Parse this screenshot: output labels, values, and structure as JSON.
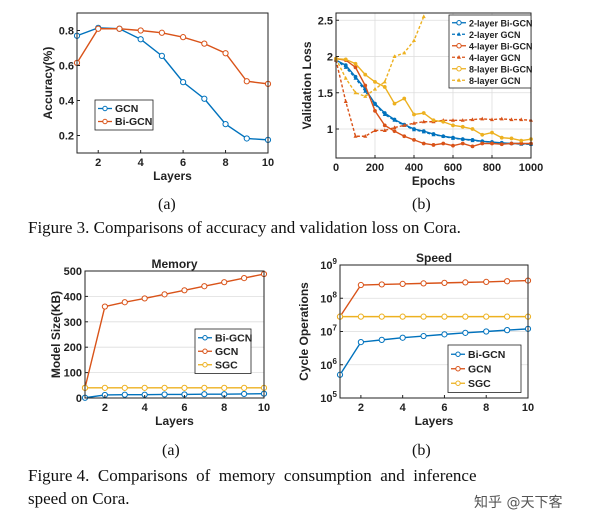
{
  "colors": {
    "blue": "#0072BD",
    "orange": "#D95319",
    "yellow": "#EDB120"
  },
  "figure3": {
    "caption": "Figure 3. Comparisons of accuracy and validation loss on Cora.",
    "sub_a": "(a)",
    "sub_b": "(b)"
  },
  "figure4": {
    "caption_line1": "Figure 4.  Comparisons  of  memory  consumption  and  inference",
    "caption_line2": "speed on Cora.",
    "sub_a": "(a)",
    "sub_b": "(b)"
  },
  "watermark": "知乎 @天下客",
  "chart_data": [
    {
      "id": "f3a",
      "type": "line",
      "title": "",
      "xlabel": "Layers",
      "ylabel": "Accuracy(%)",
      "xlim": [
        1,
        10
      ],
      "ylim": [
        0.1,
        0.9
      ],
      "xticks": [
        2,
        4,
        6,
        8,
        10
      ],
      "yticks": [
        0.2,
        0.4,
        0.6,
        0.8
      ],
      "grid": false,
      "legend": "bottom-left",
      "x": [
        1,
        2,
        3,
        4,
        5,
        6,
        7,
        8,
        9,
        10
      ],
      "series": [
        {
          "name": "GCN",
          "color": "#0072BD",
          "marker": "circle",
          "values": [
            0.77,
            0.815,
            0.81,
            0.75,
            0.655,
            0.505,
            0.41,
            0.265,
            0.183,
            0.175
          ]
        },
        {
          "name": "Bi-GCN",
          "color": "#D95319",
          "marker": "circle",
          "values": [
            0.615,
            0.81,
            0.81,
            0.8,
            0.787,
            0.762,
            0.725,
            0.67,
            0.51,
            0.495
          ]
        }
      ]
    },
    {
      "id": "f3b",
      "type": "line",
      "title": "",
      "xlabel": "Epochs",
      "ylabel": "Validation Loss",
      "xlim": [
        0,
        1000
      ],
      "ylim": [
        0.6,
        2.6
      ],
      "xticks": [
        0,
        200,
        400,
        600,
        800,
        1000
      ],
      "yticks": [
        1,
        1.5,
        2,
        2.5
      ],
      "grid": true,
      "legend": "top-right",
      "x": [
        0,
        50,
        100,
        150,
        200,
        250,
        300,
        350,
        400,
        450,
        500,
        550,
        600,
        650,
        700,
        750,
        800,
        850,
        900,
        950,
        1000
      ],
      "series": [
        {
          "name": "2-layer Bi-GCN",
          "color": "#0072BD",
          "marker": "circle",
          "dash": false,
          "values": [
            1.95,
            1.88,
            1.72,
            1.55,
            1.35,
            1.22,
            1.13,
            1.06,
            1.0,
            0.97,
            0.93,
            0.9,
            0.88,
            0.86,
            0.85,
            0.83,
            0.82,
            0.81,
            0.8,
            0.8,
            0.79
          ]
        },
        {
          "name": "2-layer GCN",
          "color": "#0072BD",
          "marker": "triangle",
          "dash": true,
          "values": [
            1.95,
            1.85,
            1.7,
            1.52,
            1.34,
            1.2,
            1.12,
            1.05,
            0.99,
            0.96,
            0.92,
            0.9,
            0.87,
            0.86,
            0.84,
            0.83,
            0.82,
            0.8,
            0.8,
            0.79,
            0.79
          ]
        },
        {
          "name": "4-layer Bi-GCN",
          "color": "#D95319",
          "marker": "circle",
          "dash": false,
          "values": [
            1.97,
            1.95,
            1.85,
            1.6,
            1.25,
            1.05,
            0.97,
            0.9,
            0.85,
            0.8,
            0.78,
            0.8,
            0.77,
            0.8,
            0.76,
            0.8,
            0.8,
            0.79,
            0.8,
            0.8,
            0.8
          ]
        },
        {
          "name": "4-layer GCN",
          "color": "#D95319",
          "marker": "triangle",
          "dash": true,
          "values": [
            1.95,
            1.38,
            0.9,
            0.9,
            0.98,
            0.98,
            1.02,
            1.05,
            1.08,
            1.1,
            1.1,
            1.12,
            1.12,
            1.12,
            1.13,
            1.14,
            1.13,
            1.14,
            1.13,
            1.13,
            1.12
          ]
        },
        {
          "name": "8-layer Bi-GCN",
          "color": "#EDB120",
          "marker": "circle",
          "dash": false,
          "values": [
            1.97,
            1.96,
            1.9,
            1.75,
            1.65,
            1.58,
            1.35,
            1.42,
            1.2,
            1.22,
            1.12,
            1.1,
            1.05,
            1.03,
            1.0,
            0.92,
            0.95,
            0.88,
            0.87,
            0.84,
            0.86
          ]
        },
        {
          "name": "8-layer GCN",
          "color": "#EDB120",
          "marker": "triangle",
          "dash": true,
          "values": [
            1.97,
            1.7,
            1.5,
            1.45,
            1.55,
            1.65,
            2.0,
            2.05,
            2.22,
            2.55,
            null,
            null,
            null,
            null,
            null,
            null,
            null,
            null,
            null,
            null,
            null
          ]
        }
      ]
    },
    {
      "id": "f4a",
      "type": "line",
      "title": "Memory",
      "xlabel": "Layers",
      "ylabel": "Model Size(KB)",
      "xlim": [
        1,
        10
      ],
      "ylim": [
        0,
        500
      ],
      "xticks": [
        2,
        4,
        6,
        8,
        10
      ],
      "yticks": [
        0,
        100,
        200,
        300,
        400,
        500
      ],
      "grid": "horizontal",
      "legend": "right",
      "x": [
        1,
        2,
        3,
        4,
        5,
        6,
        7,
        8,
        9,
        10
      ],
      "series": [
        {
          "name": "Bi-GCN",
          "color": "#0072BD",
          "marker": "circle",
          "values": [
            1,
            12,
            13,
            13,
            14,
            14,
            15,
            15,
            16,
            17
          ]
        },
        {
          "name": "GCN",
          "color": "#D95319",
          "marker": "circle",
          "values": [
            40,
            360,
            377,
            392,
            408,
            424,
            440,
            456,
            472,
            488
          ]
        },
        {
          "name": "SGC",
          "color": "#EDB120",
          "marker": "circle",
          "values": [
            40,
            40,
            40,
            40,
            40,
            40,
            40,
            40,
            40,
            40
          ]
        }
      ]
    },
    {
      "id": "f4b",
      "type": "line",
      "title": "Speed",
      "xlabel": "Layers",
      "ylabel": "Cycle Operations",
      "xlim": [
        1,
        10
      ],
      "ylim": [
        100000,
        1000000000
      ],
      "yscale": "log",
      "xticks": [
        2,
        4,
        6,
        8,
        10
      ],
      "yticks": [
        5,
        6,
        7,
        8,
        9
      ],
      "grid": "horizontal",
      "legend": "bottom-right",
      "x": [
        1,
        2,
        3,
        4,
        5,
        6,
        7,
        8,
        9,
        10
      ],
      "series": [
        {
          "name": "Bi-GCN",
          "color": "#0072BD",
          "marker": "circle",
          "values": [
            500000,
            4800000,
            5600000,
            6500000,
            7300000,
            8200000,
            9100000,
            10000000,
            11000000,
            12000000
          ]
        },
        {
          "name": "GCN",
          "color": "#D95319",
          "marker": "circle",
          "values": [
            28000000,
            250000000,
            260000000,
            270000000,
            280000000,
            290000000,
            300000000,
            310000000,
            325000000,
            340000000
          ]
        },
        {
          "name": "SGC",
          "color": "#EDB120",
          "marker": "circle",
          "values": [
            28000000,
            28000000,
            28000000,
            28000000,
            28000000,
            28000000,
            28000000,
            28000000,
            28000000,
            28000000
          ]
        }
      ]
    }
  ]
}
